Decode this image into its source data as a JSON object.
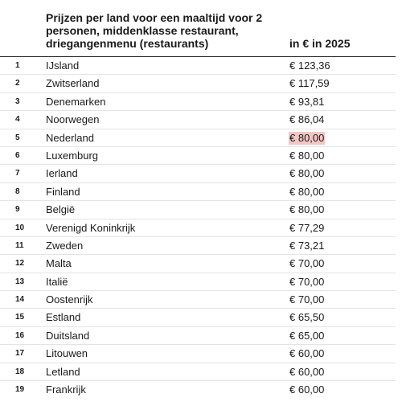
{
  "table": {
    "header": {
      "country_label": "Prijzen per land voor een maaltijd voor 2 personen, middenklasse restaurant, driegangenmenu (restaurants)",
      "price_label": "in € in 2025"
    },
    "highlight_color": "#f3c6c6",
    "rows": [
      {
        "rank": "1",
        "country": "IJsland",
        "price": "€ 123,36",
        "highlighted": false
      },
      {
        "rank": "2",
        "country": "Zwitserland",
        "price": "€ 117,59",
        "highlighted": false
      },
      {
        "rank": "3",
        "country": "Denemarken",
        "price": "€ 93,81",
        "highlighted": false
      },
      {
        "rank": "4",
        "country": "Noorwegen",
        "price": "€ 86,04",
        "highlighted": false
      },
      {
        "rank": "5",
        "country": "Nederland",
        "price": "€ 80,00",
        "highlighted": true
      },
      {
        "rank": "6",
        "country": "Luxemburg",
        "price": "€ 80,00",
        "highlighted": false
      },
      {
        "rank": "7",
        "country": "Ierland",
        "price": "€ 80,00",
        "highlighted": false
      },
      {
        "rank": "8",
        "country": "Finland",
        "price": "€ 80,00",
        "highlighted": false
      },
      {
        "rank": "9",
        "country": "België",
        "price": "€ 80,00",
        "highlighted": false
      },
      {
        "rank": "10",
        "country": "Verenigd Koninkrijk",
        "price": "€ 77,29",
        "highlighted": false
      },
      {
        "rank": "11",
        "country": "Zweden",
        "price": "€ 73,21",
        "highlighted": false
      },
      {
        "rank": "12",
        "country": "Malta",
        "price": "€ 70,00",
        "highlighted": false
      },
      {
        "rank": "13",
        "country": "Italië",
        "price": "€ 70,00",
        "highlighted": false
      },
      {
        "rank": "14",
        "country": "Oostenrijk",
        "price": "€ 70,00",
        "highlighted": false
      },
      {
        "rank": "15",
        "country": "Estland",
        "price": "€ 65,50",
        "highlighted": false
      },
      {
        "rank": "16",
        "country": "Duitsland",
        "price": "€ 65,00",
        "highlighted": false
      },
      {
        "rank": "17",
        "country": "Litouwen",
        "price": "€ 60,00",
        "highlighted": false
      },
      {
        "rank": "18",
        "country": "Letland",
        "price": "€ 60,00",
        "highlighted": false
      },
      {
        "rank": "19",
        "country": "Frankrijk",
        "price": "€ 60,00",
        "highlighted": false
      }
    ]
  }
}
